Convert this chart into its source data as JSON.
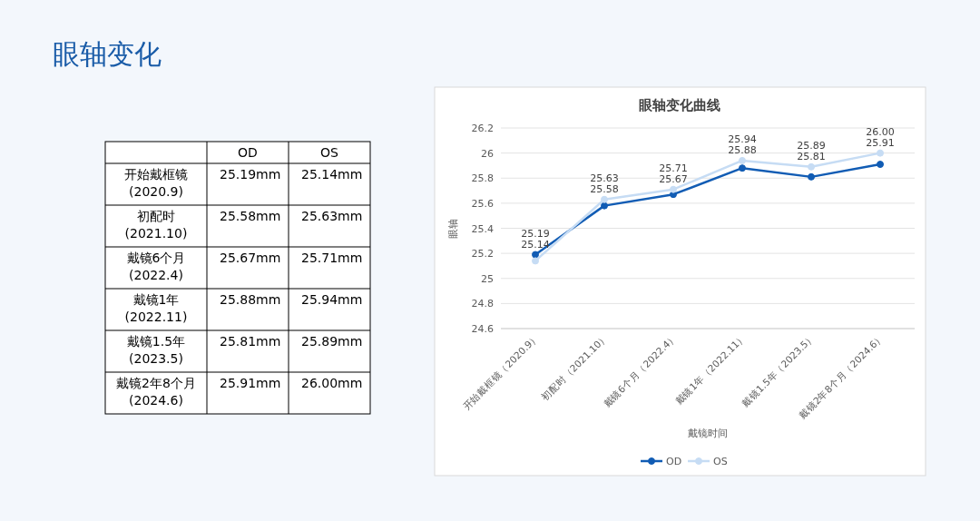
{
  "chart_data": [
    {
      "type": "other",
      "title": "眼轴变化",
      "annotations": [
        null,
        "OD",
        "OS",
        "开始戴框镜\n(2020.9)",
        "25.19mm",
        "25.14mm",
        "初配时\n(2021.10)",
        "25.58mm",
        "25.63mm",
        "戴镜6个月\n(2022.4)",
        "25.67mm",
        "25.71mm",
        "戴镜1年\n(2022.11)",
        "25.88mm",
        "25.94mm",
        "戴镜1.5年\n(2023.5)",
        "25.81mm",
        "25.89mm",
        "戴镜2年8个月\n(2024.6)",
        "25.91mm",
        "26.00mm"
      ]
    },
    {
      "type": "line",
      "title": "眼轴变化曲线",
      "xlabel": "戴镜时间",
      "ylabel": "眼轴",
      "categories": [
        "开始戴框镜（2020.9）",
        "初配时（2021.10）",
        "戴镜6个月（2022.4）",
        "戴镜1年（2022.11）",
        "戴镜1.5年（2023.5）",
        "戴镜2年8个月（2024.6）"
      ],
      "series": [
        {
          "name": "OD",
          "color": "#115cb4",
          "values": [
            25.19,
            25.58,
            25.67,
            25.88,
            25.81,
            25.91
          ],
          "value_labels": [
            "25.19",
            "25.58",
            "25.67",
            "25.88",
            "25.81",
            "25.91"
          ]
        },
        {
          "name": "OS",
          "color": "#c6dcf4",
          "values": [
            25.14,
            25.63,
            25.71,
            25.94,
            25.89,
            26.0
          ],
          "value_labels": [
            "25.14",
            "25.63",
            "25.71",
            "25.94",
            "25.89",
            "26.00"
          ]
        }
      ],
      "ylim": [
        24.6,
        26.2
      ],
      "yticks": [
        24.6,
        24.8,
        25,
        25.2,
        25.4,
        25.6,
        25.8,
        26,
        26.2
      ],
      "grid": "y",
      "legend": "bottom",
      "marker": "circle",
      "line_style": "solid"
    }
  ]
}
